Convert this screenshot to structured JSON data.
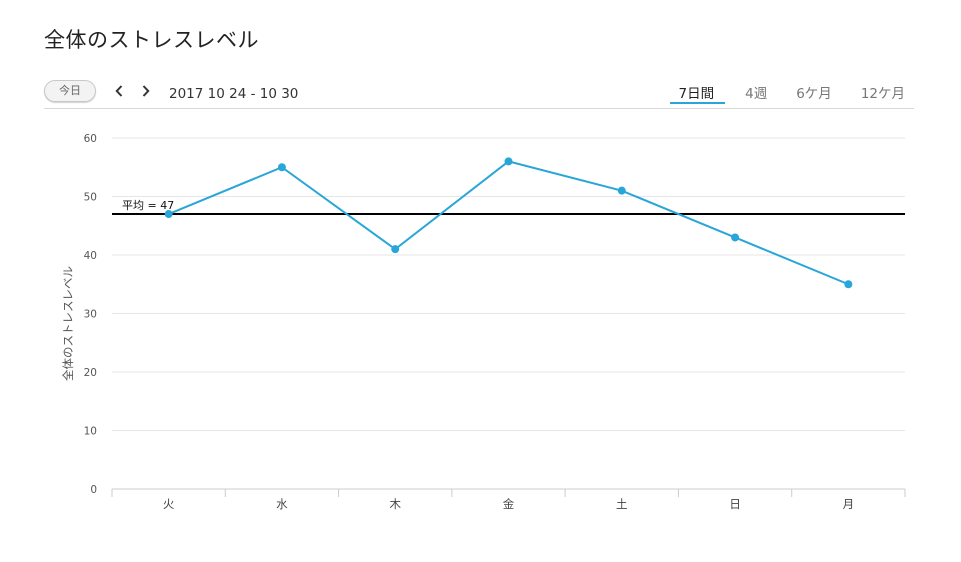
{
  "page": {
    "title": "全体のストレスレベル"
  },
  "toolbar": {
    "today_label": "今日",
    "date_range": "2017 10 24 - 10 30",
    "tabs": [
      {
        "label": "7日間",
        "active": true
      },
      {
        "label": "4週",
        "active": false
      },
      {
        "label": "6ケ月",
        "active": false
      },
      {
        "label": "12ケ月",
        "active": false
      }
    ]
  },
  "colors": {
    "line": "#29a6d8",
    "average": "#000000",
    "grid": "#e6e6e6",
    "active_tab": "#29a6d8"
  },
  "chart_data": {
    "type": "line",
    "title": "",
    "xlabel": "",
    "ylabel": "全体のストレスレベル",
    "categories": [
      "火",
      "水",
      "木",
      "金",
      "土",
      "日",
      "月"
    ],
    "series": [
      {
        "values": [
          47,
          55,
          41,
          56,
          51,
          43,
          35
        ]
      }
    ],
    "ylim": [
      0,
      60
    ],
    "yticks": [
      0,
      10,
      20,
      30,
      40,
      50,
      60
    ],
    "grid": true,
    "average": {
      "value": 47,
      "label": "平均 = 47"
    }
  }
}
